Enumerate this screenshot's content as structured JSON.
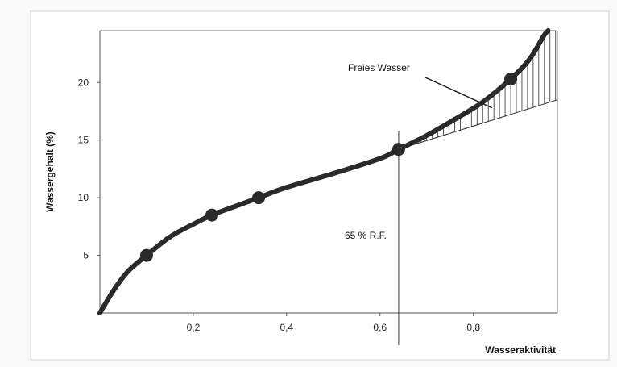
{
  "chart_data": {
    "type": "line",
    "title": "",
    "xlabel": "Wasseraktivität",
    "ylabel": "Wassergehalt (%)",
    "xlim": [
      0,
      0.98
    ],
    "ylim": [
      0,
      24.5
    ],
    "x_ticks": [
      0.2,
      0.4,
      0.6,
      0.8
    ],
    "x_tick_labels": [
      "0,2",
      "0,4",
      "0,6",
      "0,8"
    ],
    "y_ticks": [
      5,
      10,
      15,
      20
    ],
    "y_tick_labels": [
      "5",
      "10",
      "15",
      "20"
    ],
    "grid": false,
    "series": [
      {
        "curve_points": [
          {
            "x": 0.0,
            "y": 0.0
          },
          {
            "x": 0.03,
            "y": 2.0
          },
          {
            "x": 0.06,
            "y": 3.6
          },
          {
            "x": 0.1,
            "y": 5.0
          },
          {
            "x": 0.15,
            "y": 6.6
          },
          {
            "x": 0.2,
            "y": 7.7
          },
          {
            "x": 0.24,
            "y": 8.5
          },
          {
            "x": 0.3,
            "y": 9.4
          },
          {
            "x": 0.34,
            "y": 10.0
          },
          {
            "x": 0.4,
            "y": 10.9
          },
          {
            "x": 0.5,
            "y": 12.1
          },
          {
            "x": 0.6,
            "y": 13.4
          },
          {
            "x": 0.64,
            "y": 14.2
          },
          {
            "x": 0.7,
            "y": 15.4
          },
          {
            "x": 0.76,
            "y": 16.8
          },
          {
            "x": 0.82,
            "y": 18.3
          },
          {
            "x": 0.88,
            "y": 20.3
          },
          {
            "x": 0.92,
            "y": 22.0
          },
          {
            "x": 0.95,
            "y": 24.0
          },
          {
            "x": 0.96,
            "y": 24.5
          }
        ],
        "markers": [
          {
            "x": 0.1,
            "y": 5.0
          },
          {
            "x": 0.24,
            "y": 8.5
          },
          {
            "x": 0.34,
            "y": 10.0
          },
          {
            "x": 0.64,
            "y": 14.2
          },
          {
            "x": 0.88,
            "y": 20.3
          }
        ]
      }
    ],
    "reference_line": {
      "x": 0.64,
      "y_top": 15.8,
      "label": "65 % R.F."
    },
    "hatched_region": {
      "label": "Freies Wasser",
      "baseline_from": {
        "x": 0.64,
        "y": 14.2
      },
      "baseline_to": {
        "x": 0.98,
        "y": 18.5
      }
    },
    "colors": {
      "curve": "#2a2a2a",
      "axes": "#555555",
      "frame": "#cccccc"
    }
  }
}
